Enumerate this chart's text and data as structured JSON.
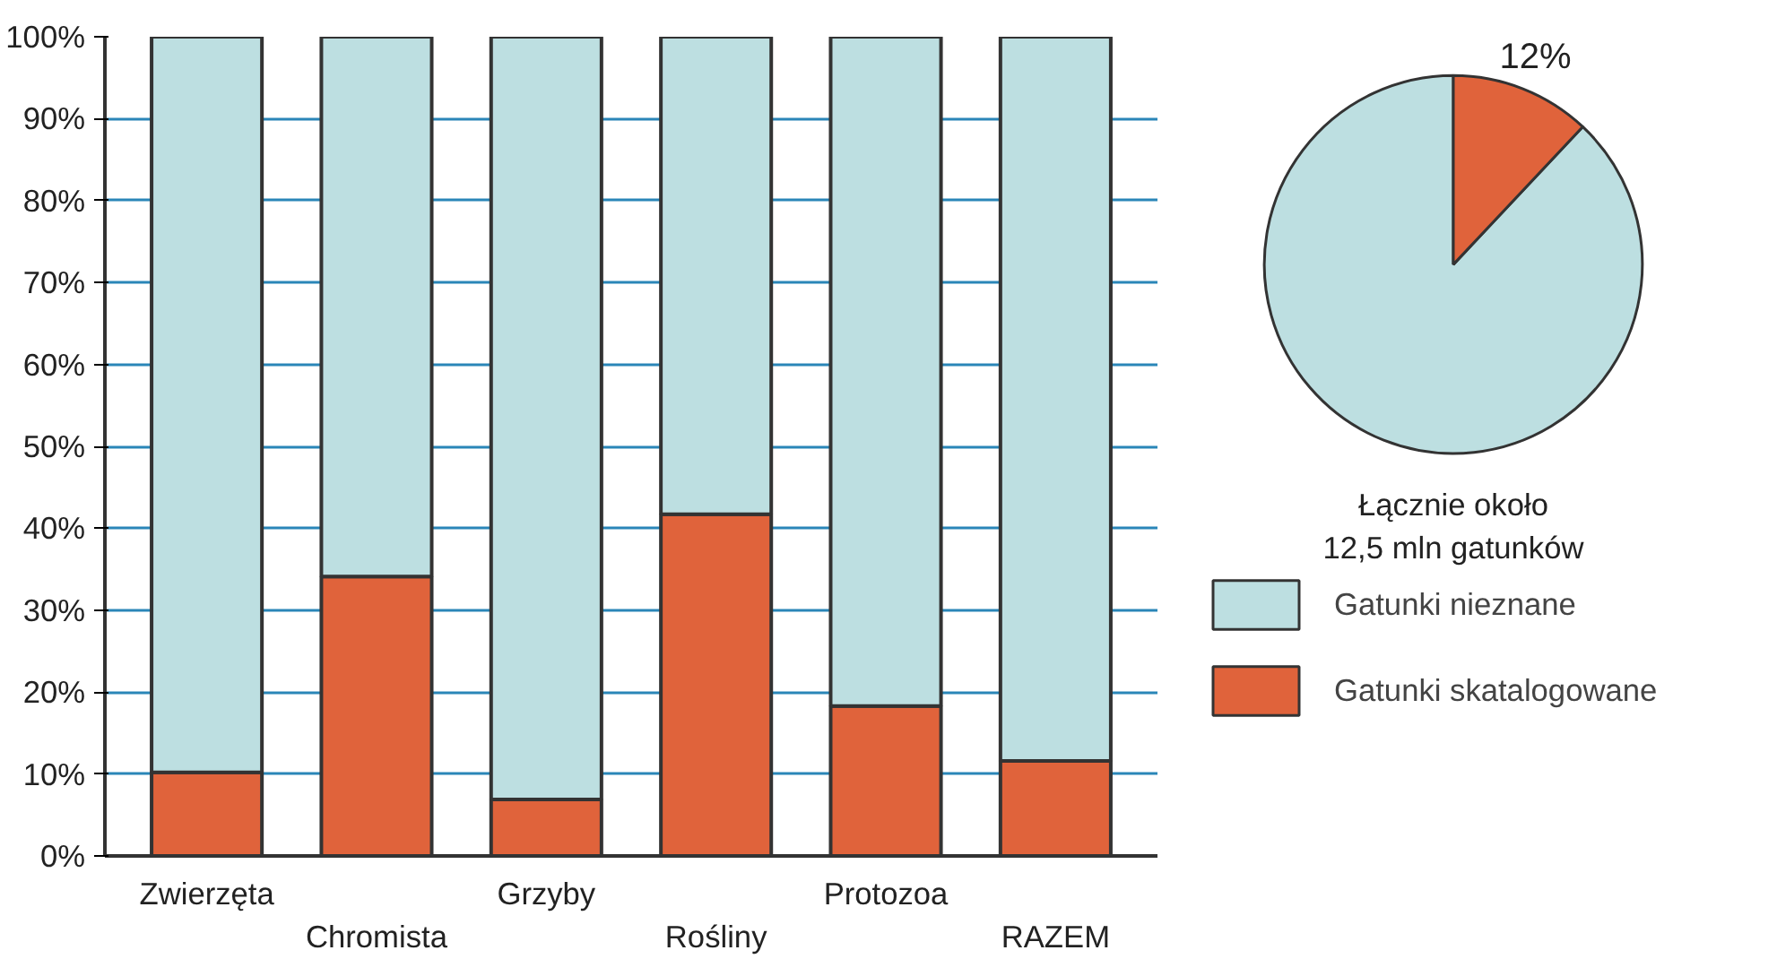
{
  "chart_data": [
    {
      "type": "bar",
      "stacked": true,
      "categories": [
        "Zwierzęta",
        "Chromista",
        "Grzyby",
        "Rośliny",
        "Protozoa",
        "RAZEM"
      ],
      "series": [
        {
          "name": "Gatunki skatalogowane",
          "color": "#e0633b",
          "values": [
            10.2,
            34.1,
            6.9,
            41.7,
            18.3,
            11.6
          ]
        },
        {
          "name": "Gatunki nieznane",
          "color": "#bddfe1",
          "values": [
            89.8,
            65.9,
            93.1,
            58.3,
            81.7,
            88.4
          ]
        }
      ],
      "ylim": [
        0,
        100
      ],
      "yticks": [
        {
          "value": 0,
          "label": "0%"
        },
        {
          "value": 10,
          "label": "10%"
        },
        {
          "value": 20,
          "label": "20%"
        },
        {
          "value": 30,
          "label": "30%"
        },
        {
          "value": 40,
          "label": "40%"
        },
        {
          "value": 50,
          "label": "50%"
        },
        {
          "value": 60,
          "label": "60%"
        },
        {
          "value": 70,
          "label": "70%"
        },
        {
          "value": 80,
          "label": "80%"
        },
        {
          "value": 90,
          "label": "90%"
        },
        {
          "value": 100,
          "label": "100%"
        }
      ],
      "grid": "y",
      "legend": "right"
    },
    {
      "type": "pie",
      "categories": [
        null,
        null
      ],
      "values": [
        88,
        12
      ],
      "colors": [
        "#bddfe1",
        "#e0633b"
      ],
      "value_labels": [
        null,
        "12%"
      ],
      "annotations": [
        "Łącznie około\n12,5 mln gatunków"
      ]
    }
  ]
}
